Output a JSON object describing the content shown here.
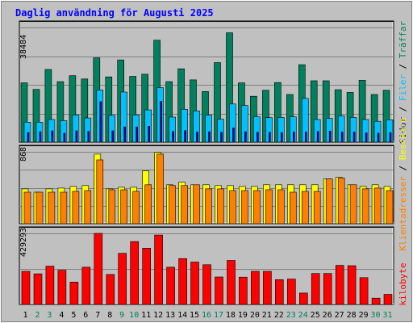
{
  "title": "Daglig användning för Augusti 2025",
  "colors": {
    "background": "#c0c0c0",
    "title": "#0000ff",
    "hits": "#00805c",
    "files": "#00c0ff",
    "pages": "#0000c0",
    "visits": "#ffff00",
    "sites": "#ff8000",
    "kbytes": "#ff0000",
    "gridline": "#808080",
    "weekend_label": "#00805c",
    "weekday_label": "#000000"
  },
  "legend": {
    "hits": "Träffar",
    "files": "Filer",
    "pages": "Sidor",
    "visits": "Besökare",
    "sites": "Klientadresser",
    "kbytes": "kilobyte"
  },
  "chart_data": {
    "type": "bar",
    "x": [
      1,
      2,
      3,
      4,
      5,
      6,
      7,
      8,
      9,
      10,
      11,
      12,
      13,
      14,
      15,
      16,
      17,
      18,
      19,
      20,
      21,
      22,
      23,
      24,
      25,
      26,
      27,
      28,
      29,
      30,
      31
    ],
    "weekend_days": [
      2,
      3,
      9,
      10,
      16,
      17,
      23,
      24,
      30,
      31
    ],
    "panels": [
      {
        "name": "hits-files-pages",
        "ymax": 38484,
        "ymax_label": "38484",
        "series": [
          {
            "name": "Träffar",
            "key": "hits",
            "values": [
              19900,
              17700,
              24400,
              20300,
              22300,
              21200,
              28300,
              21900,
              27600,
              22100,
              22800,
              34200,
              20300,
              24600,
              20900,
              17000,
              26700,
              36700,
              19900,
              15400,
              17400,
              20000,
              16000,
              26000,
              20600,
              20600,
              17600,
              16700,
              20800,
              16000,
              17400
            ]
          },
          {
            "name": "Filer",
            "key": "files",
            "values": [
              6700,
              6700,
              7600,
              7200,
              9100,
              8100,
              17500,
              9000,
              16800,
              9100,
              10800,
              18300,
              8400,
              11000,
              10500,
              9100,
              7700,
              12800,
              12300,
              8500,
              8200,
              8300,
              8500,
              14700,
              7600,
              8000,
              8800,
              8300,
              7600,
              7000,
              7500
            ]
          },
          {
            "name": "Sidor",
            "key": "pages",
            "values": [
              3200,
              3500,
              3800,
              3000,
              3800,
              3600,
              13600,
              3800,
              5100,
              5100,
              5300,
              13700,
              3600,
              3900,
              3400,
              3500,
              3300,
              4800,
              3500,
              3300,
              3300,
              3200,
              3400,
              3400,
              3600,
              3700,
              3400,
              3400,
              3100,
              3000,
              3200
            ]
          }
        ]
      },
      {
        "name": "visits-sites",
        "ymax": 868,
        "ymax_label": "868",
        "series": [
          {
            "name": "Besökare",
            "key": "visits",
            "values": [
              420,
              380,
              420,
              430,
              450,
              460,
              840,
              420,
              440,
              440,
              640,
              860,
              470,
              500,
              470,
              470,
              460,
              460,
              450,
              450,
              470,
              470,
              470,
              470,
              470,
              540,
              560,
              470,
              450,
              470,
              450
            ]
          },
          {
            "name": "Klientadresser",
            "key": "sites",
            "values": [
              380,
              380,
              380,
              380,
              390,
              400,
              770,
              410,
              410,
              390,
              470,
              840,
              460,
              460,
              470,
              420,
              420,
              400,
              400,
              400,
              410,
              410,
              380,
              390,
              390,
              540,
              550,
              470,
              420,
              430,
              400
            ]
          }
        ]
      },
      {
        "name": "kbytes",
        "ymax": 429293,
        "ymax_label": "429293",
        "series": [
          {
            "name": "kilobyte",
            "key": "kbytes",
            "values": [
              200000,
              185000,
              231000,
              207000,
              135000,
              225000,
              429293,
              181000,
              309000,
              380000,
              340000,
              419000,
              225000,
              277000,
              256000,
              240000,
              166000,
              266000,
              165000,
              200000,
              200000,
              150000,
              153000,
              69000,
              187000,
              187000,
              236000,
              234000,
              162000,
              38000,
              61000
            ]
          }
        ]
      }
    ]
  }
}
